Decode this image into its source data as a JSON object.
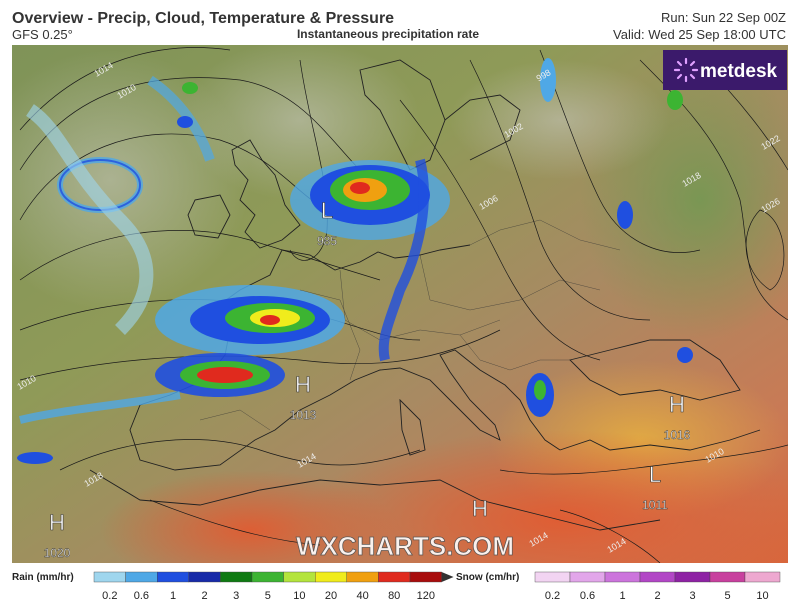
{
  "header": {
    "title": "Overview - Precip, Cloud, Temperature & Pressure",
    "model": "GFS 0.25°",
    "product": "Instantaneous precipitation rate",
    "run": "Run: Sun 22 Sep 00Z",
    "valid": "Valid: Wed 25 Sep 18:00 UTC"
  },
  "logo": "metdesk",
  "watermark": "WXCHARTS.COM",
  "pressure_centers": [
    {
      "type": "L",
      "value": 985
    },
    {
      "type": "H",
      "value": 1013
    },
    {
      "type": "H",
      "value": 1016
    },
    {
      "type": "L",
      "value": 1011
    },
    {
      "type": "H",
      "value": 1020
    },
    {
      "type": "H"
    }
  ],
  "isobar_labels": [
    1014,
    1010,
    998,
    1002,
    1006,
    1018,
    1022,
    1026,
    1010,
    1014,
    1018,
    1010,
    1014,
    1014
  ],
  "legend": {
    "rain": {
      "label": "Rain (mm/hr)",
      "ticks": [
        0.2,
        0.6,
        1,
        2,
        3,
        5,
        10,
        20,
        40,
        80,
        120
      ],
      "colors": [
        "#9fd6ee",
        "#4fa8e6",
        "#1f4fe0",
        "#172aa8",
        "#0f7a12",
        "#3cb432",
        "#b4e43c",
        "#f0ec1c",
        "#f0a010",
        "#e02a1e",
        "#a80c0c",
        "#6e3a2a"
      ]
    },
    "snow": {
      "label": "Snow (cm/hr)",
      "ticks": [
        0.2,
        0.6,
        1,
        2,
        3,
        5,
        10
      ],
      "colors": [
        "#f2d4f2",
        "#e2a6ea",
        "#cc74dc",
        "#b246c6",
        "#8e22a4",
        "#c8409e",
        "#eea8d0"
      ]
    }
  }
}
